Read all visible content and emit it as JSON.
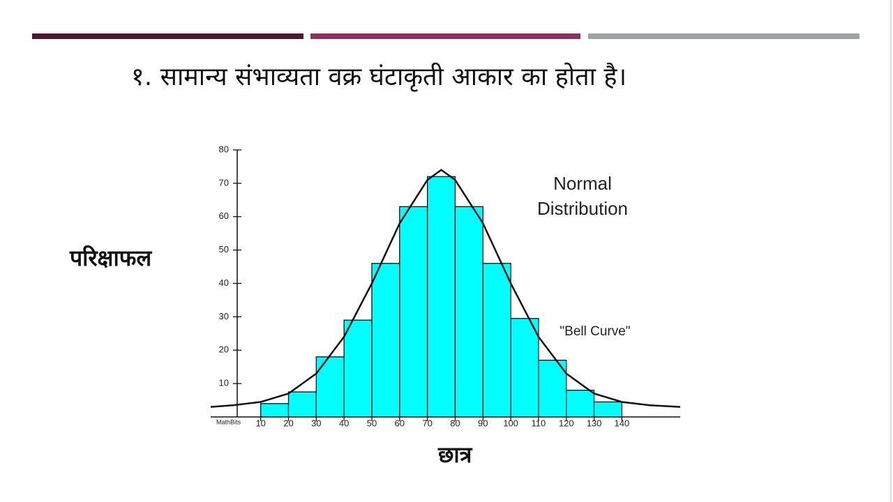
{
  "chart_data": {
    "type": "histogram",
    "title": "१. सामान्य संभाव्यता वक्र घंटाकृती आकार का होता है।",
    "ylabel": "परिक्षाफल",
    "xlabel": "छात्र",
    "annotations": {
      "heading": [
        "Normal",
        "Distribution"
      ],
      "curve_label": "\"Bell Curve\"",
      "credit": "MathBits"
    },
    "bins": [
      10,
      20,
      30,
      40,
      50,
      60,
      70,
      80,
      90,
      100,
      110,
      120,
      130,
      140
    ],
    "values": [
      4,
      7.5,
      18,
      29,
      46,
      63,
      72,
      63,
      46,
      29.5,
      17,
      8,
      4.5
    ],
    "color": "#00ffff",
    "curve": {
      "x": [
        -8,
        0,
        10,
        20,
        30,
        40,
        50,
        60,
        70,
        75,
        80,
        90,
        100,
        110,
        120,
        130,
        140,
        150,
        161
      ],
      "values": [
        3,
        3.5,
        4.5,
        7,
        13,
        24,
        40,
        58,
        71,
        74,
        71,
        58,
        40,
        24,
        13,
        7,
        4.5,
        3.5,
        3
      ]
    },
    "xlim": [
      -8,
      161
    ],
    "xticks": [
      10,
      20,
      30,
      40,
      50,
      60,
      70,
      80,
      90,
      100,
      110,
      120,
      130,
      140
    ],
    "ylim": [
      0,
      80
    ],
    "yticks": [
      10,
      20,
      30,
      40,
      50,
      60,
      70,
      80
    ]
  }
}
